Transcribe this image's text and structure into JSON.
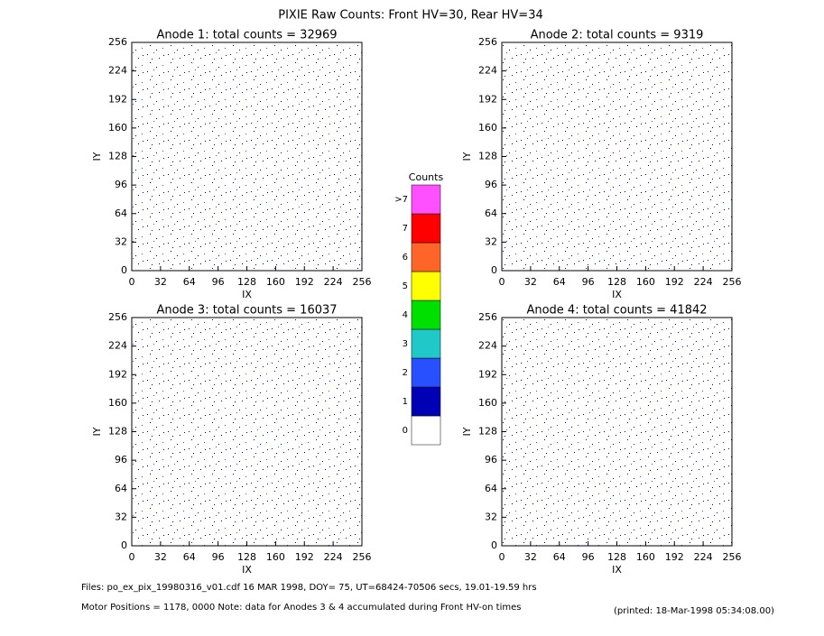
{
  "title": "PIXIE Raw Counts:  Front HV=30, Rear HV=34",
  "chart_data": [
    {
      "type": "heatmap",
      "title": "Anode 1: total counts = 32969",
      "x_label": "IX",
      "y_label": "IY",
      "xlim": [
        0,
        256
      ],
      "ylim": [
        0,
        256
      ],
      "xticks": [
        0,
        32,
        64,
        96,
        128,
        160,
        192,
        224,
        256
      ],
      "yticks": [
        0,
        32,
        64,
        96,
        128,
        160,
        192,
        224,
        256
      ]
    },
    {
      "type": "heatmap",
      "title": "Anode 2: total counts = 9319",
      "x_label": "IX",
      "y_label": "IY",
      "xlim": [
        0,
        256
      ],
      "ylim": [
        0,
        256
      ],
      "xticks": [
        0,
        32,
        64,
        96,
        128,
        160,
        192,
        224,
        256
      ],
      "yticks": [
        0,
        32,
        64,
        96,
        128,
        160,
        192,
        224,
        256
      ]
    },
    {
      "type": "heatmap",
      "title": "Anode 3: total counts = 16037",
      "x_label": "IX",
      "y_label": "IY",
      "xlim": [
        0,
        256
      ],
      "ylim": [
        0,
        256
      ],
      "xticks": [
        0,
        32,
        64,
        96,
        128,
        160,
        192,
        224,
        256
      ],
      "yticks": [
        0,
        32,
        64,
        96,
        128,
        160,
        192,
        224,
        256
      ]
    },
    {
      "type": "heatmap",
      "title": "Anode 4: total counts = 41842",
      "x_label": "IX",
      "y_label": "IY",
      "xlim": [
        0,
        256
      ],
      "ylim": [
        0,
        256
      ],
      "xticks": [
        0,
        32,
        64,
        96,
        128,
        160,
        192,
        224,
        256
      ],
      "yticks": [
        0,
        32,
        64,
        96,
        128,
        160,
        192,
        224,
        256
      ]
    }
  ],
  "colorbar": {
    "title": "Counts",
    "levels": [
      "0",
      "1",
      "2",
      "3",
      "4",
      "5",
      "6",
      "7",
      ">7"
    ],
    "colors": [
      "#ffffff",
      "#0000b4",
      "#2850ff",
      "#20c8c8",
      "#00e000",
      "#ffff00",
      "#ff6428",
      "#ff0000",
      "#ff50ff"
    ]
  },
  "footer": {
    "files": "Files: po_ex_pix_19980316_v01.cdf     16 MAR 1998, DOY= 75, UT=68424-70506 secs, 19.01-19.59 hrs",
    "motor": "Motor Positions = 1178, 0000    Note: data for Anodes 3 & 4 accumulated during Front HV-on times",
    "printed": "(printed: 18-Mar-1998 05:34:08.00)"
  }
}
